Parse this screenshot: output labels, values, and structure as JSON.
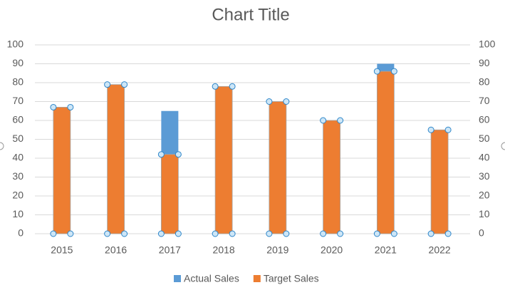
{
  "chart_data": {
    "type": "bar",
    "title": "Chart Title",
    "categories": [
      "2015",
      "2016",
      "2017",
      "2018",
      "2019",
      "2020",
      "2021",
      "2022"
    ],
    "series": [
      {
        "name": "Actual Sales",
        "color": "#5b9bd5",
        "values": [
          67,
          79,
          65,
          78,
          70,
          60,
          90,
          55
        ]
      },
      {
        "name": "Target Sales",
        "color": "#ed7d31",
        "axis": "y2",
        "values": [
          67,
          79,
          42,
          78,
          70,
          60,
          86,
          55
        ]
      }
    ],
    "ylim": [
      0,
      100
    ],
    "yticks": [
      0,
      10,
      20,
      30,
      40,
      50,
      60,
      70,
      80,
      90,
      100
    ],
    "y2lim": [
      0,
      100
    ],
    "y2ticks": [
      0,
      10,
      20,
      30,
      40,
      50,
      60,
      70,
      80,
      90,
      100
    ],
    "grid": true,
    "legend": "bottom"
  }
}
